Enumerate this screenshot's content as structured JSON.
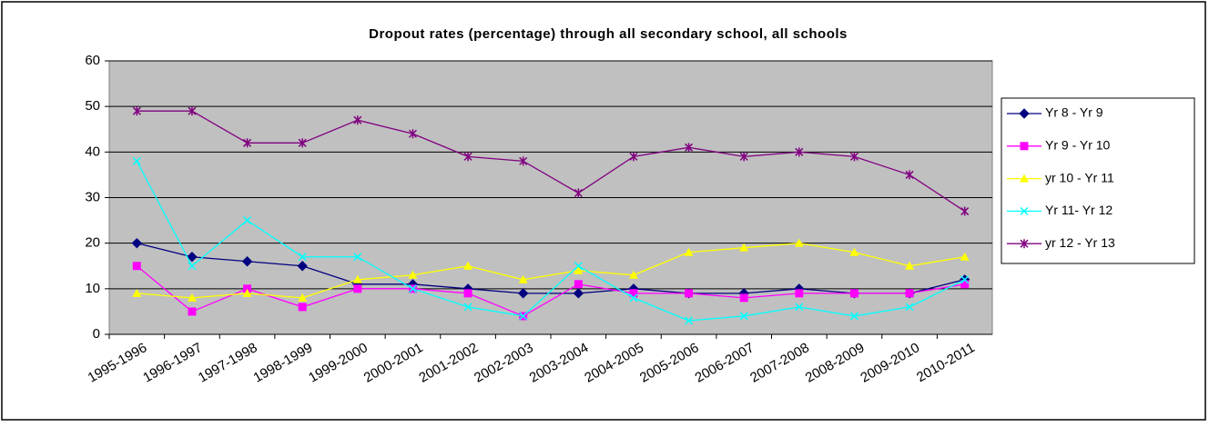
{
  "chart_data": {
    "type": "line",
    "title": "Dropout rates (percentage) through all secondary school, all schools",
    "categories": [
      "1995-1996",
      "1996-1997",
      "1997-1998",
      "1998-1999",
      "1999-2000",
      "2000-2001",
      "2001-2002",
      "2002-2003",
      "2003-2004",
      "2004-2005",
      "2005-2006",
      "2006-2007",
      "2007-2008",
      "2008-2009",
      "2009-2010",
      "2010-2011"
    ],
    "series": [
      {
        "name": "Yr 8 - Yr 9",
        "color": "#000080",
        "marker": "diamond",
        "values": [
          20,
          17,
          16,
          15,
          11,
          11,
          10,
          9,
          9,
          10,
          9,
          9,
          10,
          9,
          9,
          12
        ]
      },
      {
        "name": "Yr 9 - Yr 10",
        "color": "#ff00ff",
        "marker": "square",
        "values": [
          15,
          5,
          10,
          6,
          10,
          10,
          9,
          4,
          11,
          9,
          9,
          8,
          9,
          9,
          9,
          11
        ]
      },
      {
        "name": "yr 10 - Yr 11",
        "color": "#ffff00",
        "marker": "triangle",
        "values": [
          9,
          8,
          9,
          8,
          12,
          13,
          15,
          12,
          14,
          13,
          18,
          19,
          20,
          18,
          15,
          17
        ]
      },
      {
        "name": "Yr 11- Yr 12",
        "color": "#00ffff",
        "marker": "x",
        "values": [
          38,
          15,
          25,
          17,
          17,
          10,
          6,
          4,
          15,
          8,
          3,
          4,
          6,
          4,
          6,
          12
        ]
      },
      {
        "name": "yr 12 - Yr 13",
        "color": "#800080",
        "marker": "star",
        "values": [
          49,
          49,
          42,
          42,
          47,
          44,
          39,
          38,
          31,
          39,
          41,
          39,
          40,
          39,
          35,
          27
        ]
      }
    ],
    "ylim": [
      0,
      60
    ],
    "yticks": [
      0,
      10,
      20,
      30,
      40,
      50,
      60
    ],
    "grid": true,
    "plot_background": "#c0c0c0",
    "legend": "right"
  }
}
